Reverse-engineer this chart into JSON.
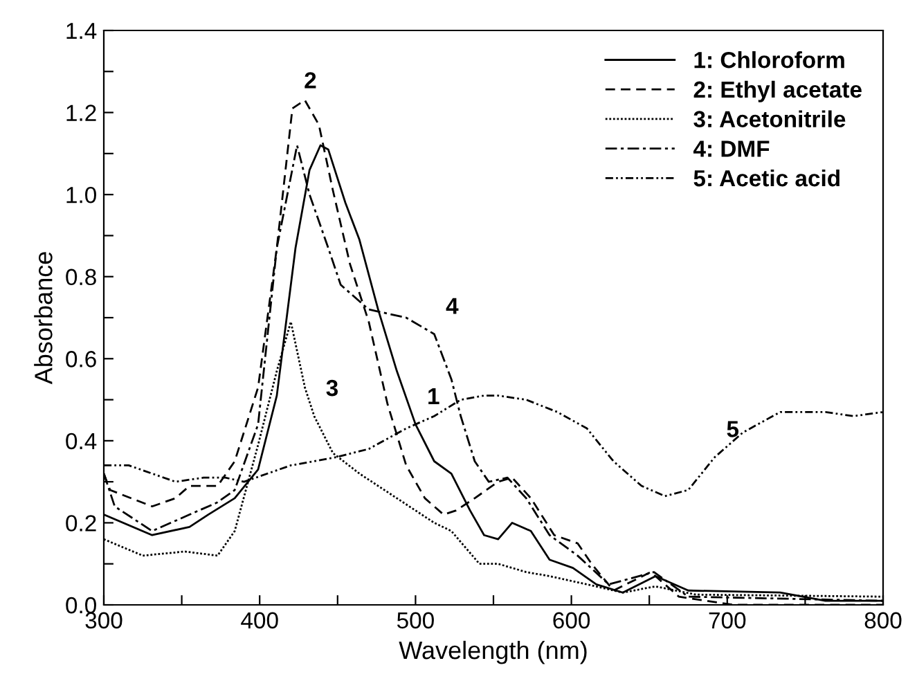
{
  "chart_data": {
    "type": "line",
    "xlabel": "Wavelength (nm)",
    "ylabel": "Absorbance",
    "xlim": [
      300,
      800
    ],
    "ylim": [
      0,
      1.4
    ],
    "xticks": [
      300,
      {
        "value": 350,
        "label": null
      },
      400,
      {
        "value": 450,
        "label": null
      },
      500,
      {
        "value": 550,
        "label": null
      },
      600,
      {
        "value": 650,
        "label": null
      },
      700,
      {
        "value": 750,
        "label": null
      },
      800
    ],
    "yticks": [
      {
        "value": 0,
        "label": "0.0"
      },
      {
        "value": 0.1,
        "label": null
      },
      {
        "value": 0.2,
        "label": "0.2"
      },
      {
        "value": 0.3,
        "label": null
      },
      {
        "value": 0.4,
        "label": "0.4"
      },
      {
        "value": 0.5,
        "label": null
      },
      {
        "value": 0.6,
        "label": "0.6"
      },
      {
        "value": 0.7,
        "label": null
      },
      {
        "value": 0.8,
        "label": "0.8"
      },
      {
        "value": 0.9,
        "label": null
      },
      {
        "value": 1.0,
        "label": "1.0"
      },
      {
        "value": 1.1,
        "label": null
      },
      {
        "value": 1.2,
        "label": "1.2"
      },
      {
        "value": 1.3,
        "label": null
      },
      {
        "value": 1.4,
        "label": "1.4"
      }
    ],
    "grid": false,
    "legend": "top right",
    "series": [
      {
        "name": "1: Chloroform",
        "color": "#000000",
        "line_style": "solid",
        "x": [
          300,
          331,
          355,
          367,
          384,
          399,
          411,
          423,
          432,
          439,
          444,
          455,
          464,
          476,
          488,
          500,
          512,
          523,
          535,
          544,
          553,
          562,
          574,
          586,
          601,
          616,
          633,
          654,
          675,
          734,
          763,
          800
        ],
        "values": [
          0.22,
          0.17,
          0.19,
          0.22,
          0.26,
          0.33,
          0.51,
          0.87,
          1.06,
          1.12,
          1.11,
          0.98,
          0.89,
          0.72,
          0.57,
          0.44,
          0.35,
          0.32,
          0.23,
          0.17,
          0.16,
          0.2,
          0.18,
          0.11,
          0.09,
          0.05,
          0.03,
          0.07,
          0.035,
          0.03,
          0.01,
          0.01
        ]
      },
      {
        "name": "2: Ethyl acetate",
        "color": "#000000",
        "line_style": "dashed",
        "x": [
          300,
          304,
          331,
          346,
          355,
          373,
          384,
          399,
          411,
          421,
          429,
          438,
          447,
          458,
          470,
          482,
          494,
          506,
          518,
          526,
          538,
          553,
          562,
          574,
          589,
          604,
          613,
          627,
          651,
          669,
          704,
          800
        ],
        "values": [
          0.32,
          0.28,
          0.24,
          0.26,
          0.29,
          0.29,
          0.35,
          0.53,
          0.87,
          1.21,
          1.23,
          1.17,
          1.01,
          0.83,
          0.69,
          0.49,
          0.34,
          0.26,
          0.22,
          0.23,
          0.26,
          0.3,
          0.31,
          0.26,
          0.17,
          0.15,
          0.1,
          0.035,
          0.08,
          0.02,
          0.0,
          0.0
        ]
      },
      {
        "name": "3: Acetonitrile",
        "color": "#000000",
        "line_style": "dotted",
        "x": [
          300,
          325,
          352,
          373,
          384,
          399,
          411,
          420,
          429,
          435,
          447,
          464,
          488,
          512,
          523,
          541,
          553,
          571,
          586,
          610,
          633,
          654,
          680,
          800
        ],
        "values": [
          0.16,
          0.12,
          0.13,
          0.12,
          0.18,
          0.39,
          0.57,
          0.69,
          0.53,
          0.46,
          0.37,
          0.32,
          0.26,
          0.2,
          0.18,
          0.1,
          0.1,
          0.08,
          0.07,
          0.05,
          0.03,
          0.045,
          0.025,
          0.02
        ]
      },
      {
        "name": "4: DMF",
        "color": "#000000",
        "line_style": "dashdot",
        "x": [
          300,
          307,
          331,
          355,
          373,
          384,
          399,
          411,
          424,
          432,
          444,
          452,
          470,
          494,
          512,
          523,
          529,
          538,
          547,
          559,
          571,
          586,
          604,
          624,
          653,
          675,
          800
        ],
        "values": [
          0.32,
          0.24,
          0.18,
          0.22,
          0.25,
          0.28,
          0.44,
          0.87,
          1.12,
          1.0,
          0.87,
          0.78,
          0.72,
          0.7,
          0.66,
          0.55,
          0.46,
          0.35,
          0.3,
          0.31,
          0.26,
          0.17,
          0.12,
          0.05,
          0.08,
          0.02,
          0.01
        ]
      },
      {
        "name": "5: Acetic acid",
        "color": "#000000",
        "line_style": "dashdotdot",
        "x": [
          300,
          316,
          331,
          346,
          364,
          378,
          390,
          405,
          420,
          435,
          449,
          470,
          494,
          512,
          529,
          544,
          553,
          571,
          591,
          610,
          627,
          645,
          660,
          675,
          692,
          710,
          734,
          763,
          781,
          800
        ],
        "values": [
          0.34,
          0.34,
          0.32,
          0.3,
          0.31,
          0.31,
          0.3,
          0.32,
          0.34,
          0.35,
          0.36,
          0.38,
          0.43,
          0.46,
          0.5,
          0.51,
          0.51,
          0.5,
          0.47,
          0.43,
          0.35,
          0.29,
          0.265,
          0.28,
          0.36,
          0.42,
          0.47,
          0.47,
          0.46,
          0.47
        ]
      }
    ],
    "annotations": [
      {
        "text": "2",
        "x": 421,
        "y": 1.21
      },
      {
        "text": "3",
        "x": 435,
        "y": 0.46
      },
      {
        "text": "4",
        "x": 512,
        "y": 0.66
      },
      {
        "text": "1",
        "x": 500,
        "y": 0.44
      },
      {
        "text": "5",
        "x": 692,
        "y": 0.36
      }
    ]
  }
}
